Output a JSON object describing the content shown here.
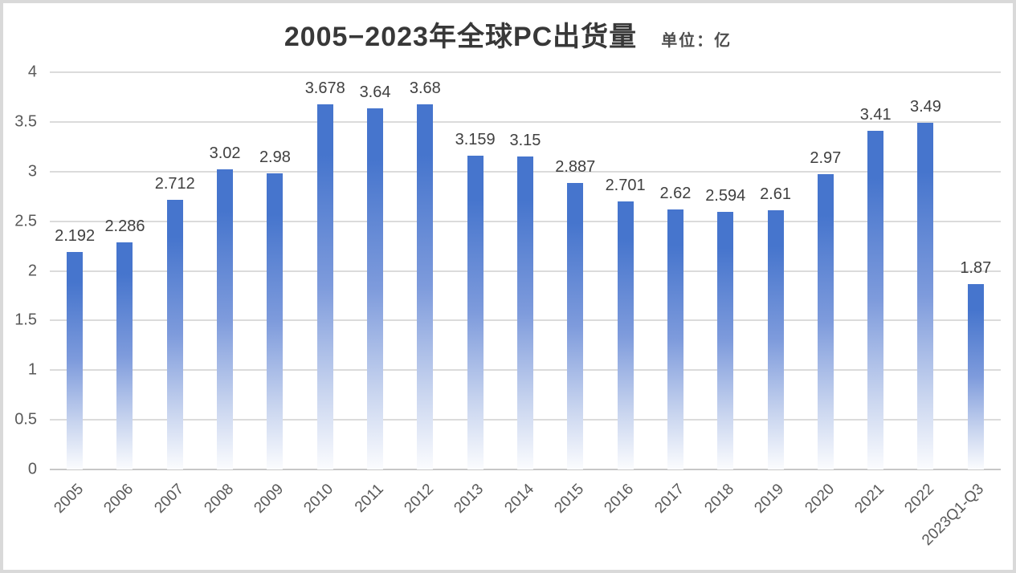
{
  "header": {
    "title": "2005−2023年全球PC出货量",
    "unit_label": "单位：亿"
  },
  "chart_data": {
    "type": "bar",
    "title": "2005−2023年全球PC出货量",
    "unit": "亿",
    "categories": [
      "2005",
      "2006",
      "2007",
      "2008",
      "2009",
      "2010",
      "2011",
      "2012",
      "2013",
      "2014",
      "2015",
      "2016",
      "2017",
      "2018",
      "2019",
      "2020",
      "2021",
      "2022",
      "2023Q1-Q3"
    ],
    "values": [
      2.192,
      2.286,
      2.712,
      3.02,
      2.98,
      3.678,
      3.64,
      3.68,
      3.159,
      3.15,
      2.887,
      2.701,
      2.62,
      2.594,
      2.61,
      2.97,
      3.41,
      3.49,
      1.87
    ],
    "xlabel": "",
    "ylabel": "",
    "ylim": [
      0,
      4
    ],
    "ytick_step": 0.5,
    "yticks": [
      "0",
      "0.5",
      "1",
      "1.5",
      "2",
      "2.5",
      "3",
      "3.5",
      "4"
    ],
    "grid": true,
    "legend_position": "none",
    "colors": {
      "bar_top": "#4675CD",
      "bar_mid": "#7E9BDC",
      "bar_low": "#C9D5EF",
      "bar_bottom": "#FBFCFE",
      "gridline": "#DBDBDB",
      "baseline": "#C7C7C7",
      "value_label": "#404040",
      "axis_label": "#595959",
      "title": "#383838"
    }
  }
}
